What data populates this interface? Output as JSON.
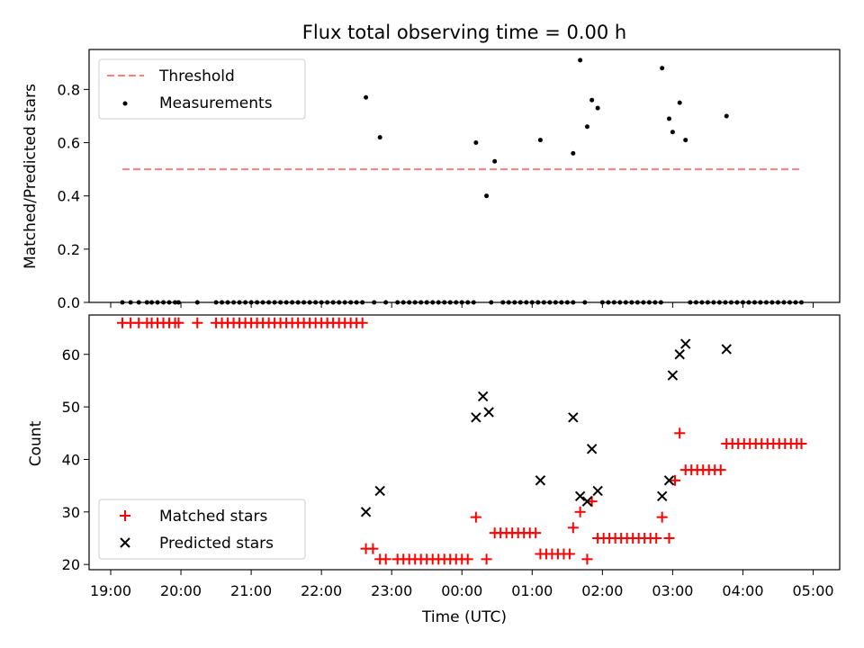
{
  "colors": {
    "threshold": "#ff7f7f",
    "measurement": "#000000",
    "matched": "#ff0000",
    "predicted": "#000000"
  },
  "x_tick_labels": [
    "19:00",
    "20:00",
    "21:00",
    "22:00",
    "23:00",
    "00:00",
    "01:00",
    "02:00",
    "03:00",
    "04:00",
    "05:00"
  ],
  "chart_data": [
    {
      "type": "scatter",
      "title": "Flux total observing time = 0.00 h",
      "xlabel": "",
      "ylabel": "Matched/Predicted stars",
      "ylim": [
        0,
        0.95
      ],
      "yticks": [
        0,
        0.2,
        0.4,
        0.6,
        0.8
      ],
      "ytick_labels": [
        "0.0",
        "0.2",
        "0.4",
        "0.6",
        "0.8"
      ],
      "xlim": [
        "19:00",
        "05:00"
      ],
      "grid": false,
      "legend": "top-left",
      "threshold": {
        "name": "Threshold",
        "y": 0.5,
        "x": [
          "19:10",
          "04:50"
        ]
      },
      "series": [
        {
          "name": "Measurements",
          "points": [
            [
              "19:10",
              0
            ],
            [
              "19:17",
              0
            ],
            [
              "19:24",
              0
            ],
            [
              "19:31",
              0
            ],
            [
              "19:35",
              0
            ],
            [
              "19:40",
              0
            ],
            [
              "19:45",
              0
            ],
            [
              "19:50",
              0
            ],
            [
              "19:55",
              0
            ],
            [
              "19:58",
              0
            ],
            [
              "20:14",
              0
            ],
            [
              "20:30",
              0
            ],
            [
              "20:35",
              0
            ],
            [
              "20:40",
              0
            ],
            [
              "20:45",
              0
            ],
            [
              "20:50",
              0
            ],
            [
              "20:55",
              0
            ],
            [
              "21:00",
              0
            ],
            [
              "21:05",
              0
            ],
            [
              "21:10",
              0
            ],
            [
              "21:15",
              0
            ],
            [
              "21:20",
              0
            ],
            [
              "21:25",
              0
            ],
            [
              "21:30",
              0
            ],
            [
              "21:35",
              0
            ],
            [
              "21:40",
              0
            ],
            [
              "21:45",
              0
            ],
            [
              "21:50",
              0
            ],
            [
              "21:55",
              0
            ],
            [
              "22:00",
              0
            ],
            [
              "22:05",
              0
            ],
            [
              "22:10",
              0
            ],
            [
              "22:15",
              0
            ],
            [
              "22:20",
              0
            ],
            [
              "22:25",
              0
            ],
            [
              "22:30",
              0
            ],
            [
              "22:35",
              0
            ],
            [
              "22:38",
              0.77
            ],
            [
              "22:50",
              0.62
            ],
            [
              "22:45",
              0
            ],
            [
              "22:55",
              0
            ],
            [
              "23:05",
              0
            ],
            [
              "23:10",
              0
            ],
            [
              "23:15",
              0
            ],
            [
              "23:20",
              0
            ],
            [
              "23:25",
              0
            ],
            [
              "23:30",
              0
            ],
            [
              "23:35",
              0
            ],
            [
              "23:40",
              0
            ],
            [
              "23:45",
              0
            ],
            [
              "23:50",
              0
            ],
            [
              "23:55",
              0
            ],
            [
              "00:00",
              0
            ],
            [
              "00:05",
              0
            ],
            [
              "00:10",
              0
            ],
            [
              "00:12",
              0.6
            ],
            [
              "00:21",
              0.4
            ],
            [
              "00:28",
              0.53
            ],
            [
              "00:25",
              0
            ],
            [
              "00:35",
              0
            ],
            [
              "00:40",
              0
            ],
            [
              "00:45",
              0
            ],
            [
              "00:50",
              0
            ],
            [
              "00:55",
              0
            ],
            [
              "01:00",
              0
            ],
            [
              "01:05",
              0
            ],
            [
              "01:10",
              0
            ],
            [
              "01:15",
              0
            ],
            [
              "01:20",
              0
            ],
            [
              "01:25",
              0
            ],
            [
              "01:30",
              0
            ],
            [
              "01:35",
              0
            ],
            [
              "01:07",
              0.61
            ],
            [
              "01:35",
              0.56
            ],
            [
              "01:41",
              0.91
            ],
            [
              "01:47",
              0.66
            ],
            [
              "01:51",
              0.76
            ],
            [
              "01:56",
              0.73
            ],
            [
              "01:45",
              0
            ],
            [
              "02:00",
              0
            ],
            [
              "02:05",
              0
            ],
            [
              "02:10",
              0
            ],
            [
              "02:15",
              0
            ],
            [
              "02:20",
              0
            ],
            [
              "02:25",
              0
            ],
            [
              "02:30",
              0
            ],
            [
              "02:35",
              0
            ],
            [
              "02:40",
              0
            ],
            [
              "02:45",
              0
            ],
            [
              "02:50",
              0
            ],
            [
              "02:51",
              0.88
            ],
            [
              "02:57",
              0.69
            ],
            [
              "03:00",
              0.64
            ],
            [
              "03:06",
              0.75
            ],
            [
              "03:11",
              0.61
            ],
            [
              "03:15",
              0
            ],
            [
              "03:20",
              0
            ],
            [
              "03:25",
              0
            ],
            [
              "03:30",
              0
            ],
            [
              "03:35",
              0
            ],
            [
              "03:40",
              0
            ],
            [
              "03:45",
              0
            ],
            [
              "03:46",
              0.7
            ],
            [
              "03:50",
              0
            ],
            [
              "03:55",
              0
            ],
            [
              "04:00",
              0
            ],
            [
              "04:05",
              0
            ],
            [
              "04:10",
              0
            ],
            [
              "04:15",
              0
            ],
            [
              "04:20",
              0
            ],
            [
              "04:25",
              0
            ],
            [
              "04:30",
              0
            ],
            [
              "04:35",
              0
            ],
            [
              "04:40",
              0
            ],
            [
              "04:45",
              0
            ],
            [
              "04:50",
              0
            ]
          ]
        }
      ]
    },
    {
      "type": "scatter",
      "title": "",
      "xlabel": "Time (UTC)",
      "ylabel": "Count",
      "ylim": [
        19,
        67.5
      ],
      "yticks": [
        20,
        30,
        40,
        50,
        60
      ],
      "ytick_labels": [
        "20",
        "30",
        "40",
        "50",
        "60"
      ],
      "xlim": [
        "19:00",
        "05:00"
      ],
      "grid": false,
      "legend": "bottom-left",
      "series": [
        {
          "name": "Matched stars",
          "points": [
            [
              "19:10",
              66
            ],
            [
              "19:17",
              66
            ],
            [
              "19:24",
              66
            ],
            [
              "19:31",
              66
            ],
            [
              "19:35",
              66
            ],
            [
              "19:40",
              66
            ],
            [
              "19:45",
              66
            ],
            [
              "19:50",
              66
            ],
            [
              "19:55",
              66
            ],
            [
              "19:58",
              66
            ],
            [
              "20:14",
              66
            ],
            [
              "20:30",
              66
            ],
            [
              "20:35",
              66
            ],
            [
              "20:40",
              66
            ],
            [
              "20:45",
              66
            ],
            [
              "20:50",
              66
            ],
            [
              "20:55",
              66
            ],
            [
              "21:00",
              66
            ],
            [
              "21:05",
              66
            ],
            [
              "21:10",
              66
            ],
            [
              "21:15",
              66
            ],
            [
              "21:20",
              66
            ],
            [
              "21:25",
              66
            ],
            [
              "21:30",
              66
            ],
            [
              "21:35",
              66
            ],
            [
              "21:40",
              66
            ],
            [
              "21:45",
              66
            ],
            [
              "21:50",
              66
            ],
            [
              "21:55",
              66
            ],
            [
              "22:00",
              66
            ],
            [
              "22:05",
              66
            ],
            [
              "22:10",
              66
            ],
            [
              "22:15",
              66
            ],
            [
              "22:20",
              66
            ],
            [
              "22:25",
              66
            ],
            [
              "22:30",
              66
            ],
            [
              "22:35",
              66
            ],
            [
              "22:38",
              23
            ],
            [
              "22:44",
              23
            ],
            [
              "22:50",
              21
            ],
            [
              "22:55",
              21
            ],
            [
              "23:05",
              21
            ],
            [
              "23:10",
              21
            ],
            [
              "23:15",
              21
            ],
            [
              "23:20",
              21
            ],
            [
              "23:25",
              21
            ],
            [
              "23:30",
              21
            ],
            [
              "23:35",
              21
            ],
            [
              "23:40",
              21
            ],
            [
              "23:45",
              21
            ],
            [
              "23:50",
              21
            ],
            [
              "23:55",
              21
            ],
            [
              "00:00",
              21
            ],
            [
              "00:05",
              21
            ],
            [
              "00:12",
              29
            ],
            [
              "00:21",
              21
            ],
            [
              "00:28",
              26
            ],
            [
              "00:33",
              26
            ],
            [
              "00:38",
              26
            ],
            [
              "00:43",
              26
            ],
            [
              "00:48",
              26
            ],
            [
              "00:53",
              26
            ],
            [
              "00:58",
              26
            ],
            [
              "01:03",
              26
            ],
            [
              "01:07",
              22
            ],
            [
              "01:12",
              22
            ],
            [
              "01:17",
              22
            ],
            [
              "01:22",
              22
            ],
            [
              "01:27",
              22
            ],
            [
              "01:32",
              22
            ],
            [
              "01:35",
              27
            ],
            [
              "01:41",
              30
            ],
            [
              "01:47",
              21
            ],
            [
              "01:51",
              32
            ],
            [
              "01:56",
              25
            ],
            [
              "02:01",
              25
            ],
            [
              "02:06",
              25
            ],
            [
              "02:11",
              25
            ],
            [
              "02:16",
              25
            ],
            [
              "02:21",
              25
            ],
            [
              "02:26",
              25
            ],
            [
              "02:31",
              25
            ],
            [
              "02:36",
              25
            ],
            [
              "02:41",
              25
            ],
            [
              "02:46",
              25
            ],
            [
              "02:51",
              29
            ],
            [
              "02:57",
              25
            ],
            [
              "03:02",
              36
            ],
            [
              "03:06",
              45
            ],
            [
              "03:11",
              38
            ],
            [
              "03:16",
              38
            ],
            [
              "03:21",
              38
            ],
            [
              "03:26",
              38
            ],
            [
              "03:31",
              38
            ],
            [
              "03:36",
              38
            ],
            [
              "03:41",
              38
            ],
            [
              "03:46",
              43
            ],
            [
              "03:51",
              43
            ],
            [
              "03:56",
              43
            ],
            [
              "04:01",
              43
            ],
            [
              "04:06",
              43
            ],
            [
              "04:11",
              43
            ],
            [
              "04:16",
              43
            ],
            [
              "04:21",
              43
            ],
            [
              "04:26",
              43
            ],
            [
              "04:31",
              43
            ],
            [
              "04:36",
              43
            ],
            [
              "04:41",
              43
            ],
            [
              "04:46",
              43
            ],
            [
              "04:50",
              43
            ]
          ]
        },
        {
          "name": "Predicted stars",
          "points": [
            [
              "22:38",
              30
            ],
            [
              "22:50",
              34
            ],
            [
              "00:12",
              48
            ],
            [
              "00:18",
              52
            ],
            [
              "00:23",
              49
            ],
            [
              "01:07",
              36
            ],
            [
              "01:35",
              48
            ],
            [
              "01:41",
              33
            ],
            [
              "01:47",
              32
            ],
            [
              "01:51",
              42
            ],
            [
              "01:56",
              34
            ],
            [
              "02:51",
              33
            ],
            [
              "02:57",
              36
            ],
            [
              "03:00",
              56
            ],
            [
              "03:06",
              60
            ],
            [
              "03:11",
              62
            ],
            [
              "03:46",
              61
            ]
          ]
        }
      ]
    }
  ]
}
